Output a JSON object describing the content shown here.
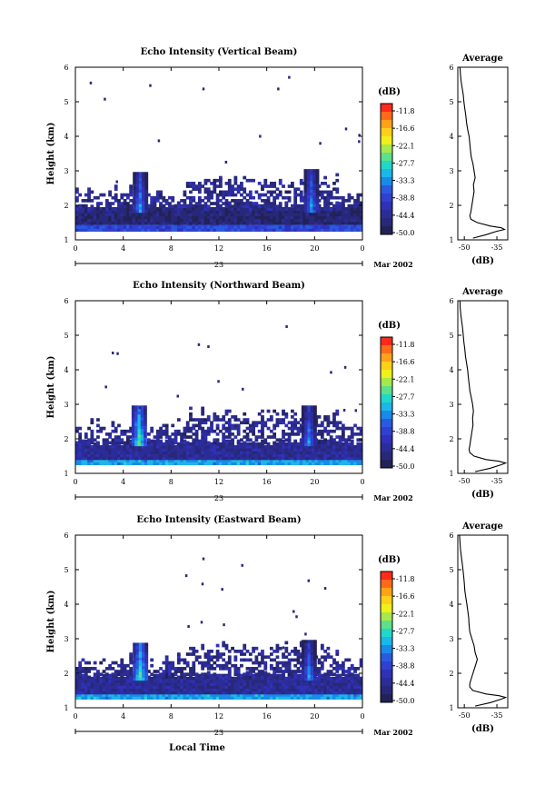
{
  "figure": {
    "x_axis_title": "Local Time",
    "date_label": "23",
    "month_label": "Mar 2002"
  },
  "colorbar": {
    "unit": "(dB)",
    "ticks": [
      "-11.8",
      "-16.6",
      "-22.1",
      "-27.7",
      "-33.3",
      "-38.8",
      "-44.4",
      "-50.0"
    ],
    "colors": [
      "#ff2a1a",
      "#ff6a1a",
      "#ffa21a",
      "#ffd01a",
      "#f0f01a",
      "#a8e84a",
      "#5ce08a",
      "#20d8c8",
      "#1ab8e8",
      "#1a8ae8",
      "#2a5ae0",
      "#3040d0",
      "#3030b8",
      "#2c2c98",
      "#28287a",
      "#222258"
    ]
  },
  "chart_data": [
    {
      "type": "heatmap",
      "title": "Echo Intensity (Vertical Beam)",
      "xlabel": "",
      "ylabel": "Height (km)",
      "xlim": [
        0,
        24
      ],
      "ylim": [
        1,
        6
      ],
      "x_ticks": [
        "0",
        "4",
        "8",
        "12",
        "16",
        "20",
        "0"
      ],
      "y_ticks": [
        "1",
        "2",
        "3",
        "4",
        "5",
        "6"
      ],
      "value_unit": "dB",
      "value_range": [
        -50.0,
        -11.8
      ],
      "layers": [
        {
          "description": "near-surface band",
          "x": [
            0,
            24
          ],
          "y": [
            1.25,
            1.45
          ],
          "value": -38.8
        },
        {
          "description": "boundary layer band",
          "x": [
            0,
            24
          ],
          "y": [
            1.45,
            1.9
          ],
          "value": -47.0
        }
      ],
      "features": [
        {
          "description": "plume",
          "time": 5.3,
          "height_top": 2.9,
          "peak": -33.3
        },
        {
          "description": "plume",
          "time": 19.6,
          "height_top": 3.0,
          "peak": -33.3
        }
      ],
      "average_profile": {
        "title": "Average",
        "xlabel": "(dB)",
        "x_ticks": [
          "-50",
          "-35"
        ],
        "xlim": [
          -53,
          -30
        ],
        "height": [
          1.05,
          1.15,
          1.25,
          1.3,
          1.35,
          1.4,
          1.5,
          1.6,
          1.7,
          1.8,
          2.0,
          2.2,
          2.4,
          2.6,
          2.8,
          3.0,
          3.2,
          3.4,
          3.6,
          3.8,
          4.0,
          4.2,
          4.4,
          4.6,
          4.8,
          5.0,
          5.2,
          5.4,
          5.6,
          5.8,
          6.0
        ],
        "value": [
          -46,
          -40,
          -35,
          -31.5,
          -33,
          -38,
          -44,
          -47,
          -47.5,
          -47,
          -46.5,
          -46,
          -45.5,
          -45.8,
          -45,
          -45.5,
          -46,
          -46.8,
          -47.2,
          -47.5,
          -47.8,
          -48.5,
          -49,
          -49.3,
          -49.8,
          -50.2,
          -50.5,
          -51,
          -51.5,
          -51.8,
          -52
        ]
      }
    },
    {
      "type": "heatmap",
      "title": "Echo Intensity (Northward Beam)",
      "xlabel": "",
      "ylabel": "Height (km)",
      "xlim": [
        0,
        24
      ],
      "ylim": [
        1,
        6
      ],
      "x_ticks": [
        "0",
        "4",
        "8",
        "12",
        "16",
        "20",
        "0"
      ],
      "y_ticks": [
        "1",
        "2",
        "3",
        "4",
        "5",
        "6"
      ],
      "value_unit": "dB",
      "value_range": [
        -50.0,
        -11.8
      ],
      "layers": [
        {
          "description": "near-surface band",
          "x": [
            0,
            24
          ],
          "y": [
            1.25,
            1.4
          ],
          "value": -33.3
        },
        {
          "description": "boundary layer band",
          "x": [
            0,
            24
          ],
          "y": [
            1.4,
            1.8
          ],
          "value": -44.4
        }
      ],
      "features": [
        {
          "description": "plume",
          "time": 5.2,
          "height_top": 2.9,
          "peak": -27.7
        },
        {
          "description": "plume",
          "time": 19.4,
          "height_top": 2.9,
          "peak": -33.3
        }
      ],
      "average_profile": {
        "title": "Average",
        "xlabel": "(dB)",
        "x_ticks": [
          "-50",
          "-35"
        ],
        "xlim": [
          -53,
          -30
        ],
        "height": [
          1.05,
          1.15,
          1.25,
          1.3,
          1.35,
          1.4,
          1.5,
          1.6,
          1.7,
          1.8,
          2.0,
          2.2,
          2.4,
          2.6,
          2.8,
          3.0,
          3.2,
          3.4,
          3.6,
          3.8,
          4.0,
          4.2,
          4.4,
          4.6,
          4.8,
          5.0,
          5.2,
          5.4,
          5.6,
          5.8,
          6.0
        ],
        "value": [
          -45,
          -38,
          -33,
          -31,
          -34,
          -40,
          -45.5,
          -47.5,
          -47.8,
          -47.5,
          -47,
          -46.5,
          -46,
          -46.2,
          -45.8,
          -46.2,
          -46.8,
          -47.5,
          -47.8,
          -48.2,
          -48.5,
          -49,
          -49.5,
          -49.8,
          -50.2,
          -50.5,
          -50.8,
          -51.2,
          -51.6,
          -51.9,
          -52
        ]
      }
    },
    {
      "type": "heatmap",
      "title": "Echo Intensity (Eastward Beam)",
      "xlabel": "Local Time",
      "ylabel": "Height (km)",
      "xlim": [
        0,
        24
      ],
      "ylim": [
        1,
        6
      ],
      "x_ticks": [
        "0",
        "4",
        "8",
        "12",
        "16",
        "20",
        "0"
      ],
      "y_ticks": [
        "1",
        "2",
        "3",
        "4",
        "5",
        "6"
      ],
      "value_unit": "dB",
      "value_range": [
        -50.0,
        -11.8
      ],
      "layers": [
        {
          "description": "near-surface band",
          "x": [
            0,
            24
          ],
          "y": [
            1.25,
            1.4
          ],
          "value": -33.3
        },
        {
          "description": "boundary layer band",
          "x": [
            0,
            24
          ],
          "y": [
            1.4,
            1.85
          ],
          "value": -44.4
        }
      ],
      "features": [
        {
          "description": "plume",
          "time": 5.3,
          "height_top": 2.8,
          "peak": -27.7
        },
        {
          "description": "plume",
          "time": 19.4,
          "height_top": 2.9,
          "peak": -33.3
        }
      ],
      "average_profile": {
        "title": "Average",
        "xlabel": "(dB)",
        "x_ticks": [
          "-50",
          "-35"
        ],
        "xlim": [
          -53,
          -30
        ],
        "height": [
          1.05,
          1.15,
          1.25,
          1.3,
          1.35,
          1.4,
          1.5,
          1.6,
          1.7,
          1.8,
          2.0,
          2.2,
          2.4,
          2.6,
          2.8,
          3.0,
          3.2,
          3.4,
          3.6,
          3.8,
          4.0,
          4.2,
          4.4,
          4.6,
          4.8,
          5.0,
          5.2,
          5.4,
          5.6,
          5.8,
          6.0
        ],
        "value": [
          -45,
          -38,
          -33,
          -31,
          -34,
          -40,
          -46,
          -47.5,
          -47.5,
          -47,
          -46,
          -45,
          -44,
          -45,
          -45.5,
          -46.5,
          -47.5,
          -47.8,
          -48,
          -48.4,
          -48.8,
          -49.3,
          -49.8,
          -50,
          -50.3,
          -50.6,
          -51,
          -51.4,
          -51.8,
          -52,
          -52.2
        ]
      }
    }
  ]
}
